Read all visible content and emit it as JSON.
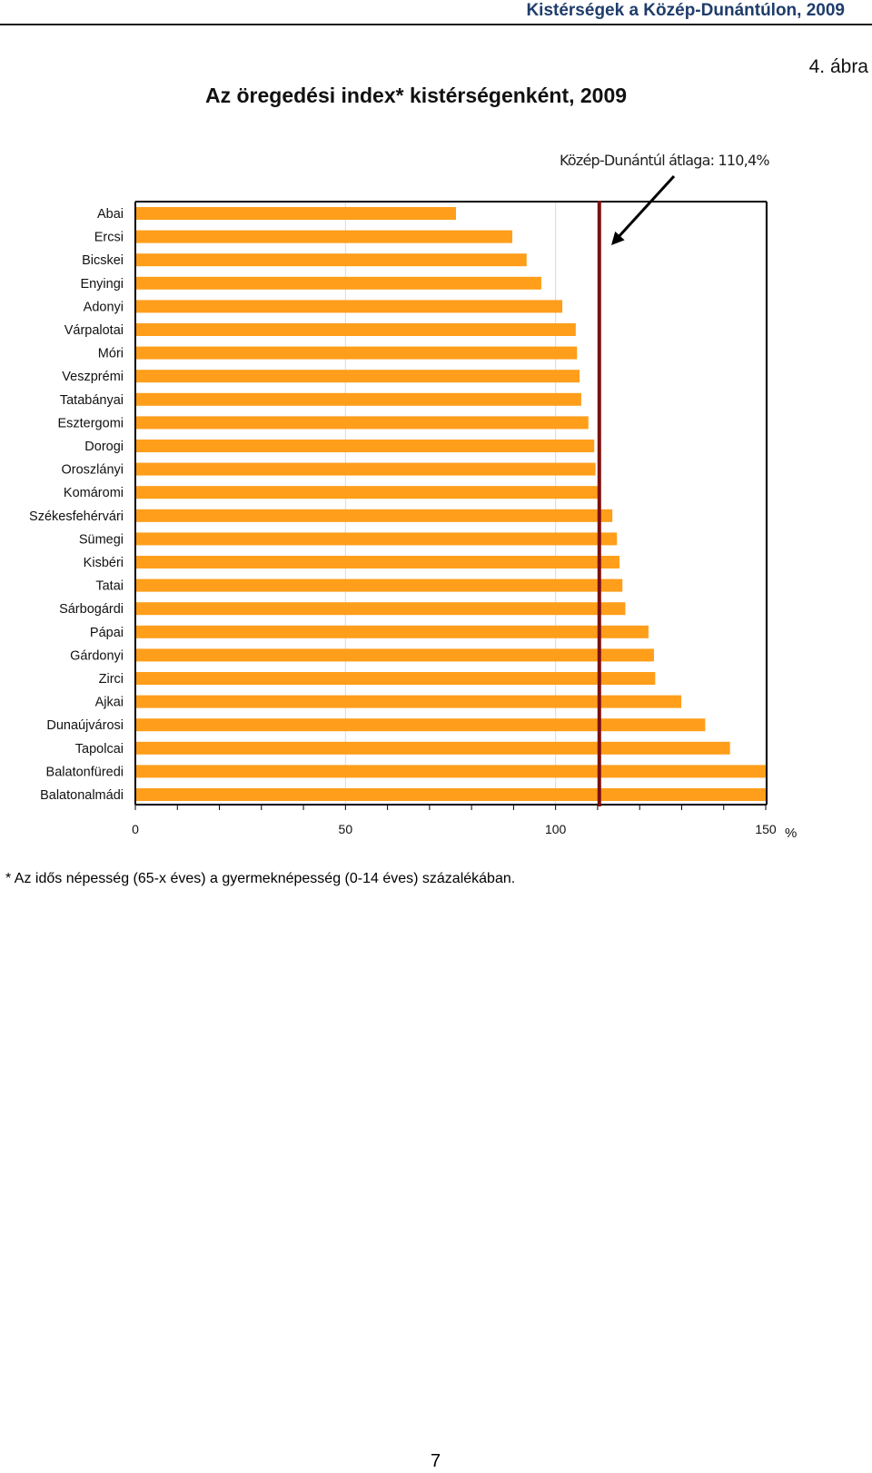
{
  "header": {
    "title": "Kistérségek a Közép-Dunántúlon, 2009"
  },
  "figure_number": "4. ábra",
  "footnote": "* Az idős népesség (65-x éves) a gyermeknépesség (0-14 éves) százalékában.",
  "page_number": "7",
  "colors": {
    "bar": "#FF9E1A",
    "average_line": "#7B1010",
    "axis": "#000000",
    "grid": "#D9D9D9",
    "header_text": "#1F3D6B"
  },
  "chart_data": {
    "type": "bar",
    "orientation": "horizontal",
    "title": "Az öregedési index* kistérségenként, 2009",
    "categories": [
      "Abai",
      "Ercsi",
      "Bicskei",
      "Enyingi",
      "Adonyi",
      "Várpalotai",
      "Móri",
      "Veszprémi",
      "Tatabányai",
      "Esztergomi",
      "Dorogi",
      "Oroszlányi",
      "Komáromi",
      "Székesfehérvári",
      "Sümegi",
      "Kisbéri",
      "Tatai",
      "Sárbogárdi",
      "Pápai",
      "Gárdonyi",
      "Zirci",
      "Ajkai",
      "Dunaújvárosi",
      "Tapolcai",
      "Balatonfüredi",
      "Balatonalmádi"
    ],
    "values": [
      76.3,
      89.7,
      93.1,
      96.6,
      101.6,
      104.8,
      105.1,
      105.7,
      106.1,
      107.8,
      109.2,
      109.5,
      110.4,
      113.5,
      114.6,
      115.2,
      115.9,
      116.6,
      122.1,
      123.4,
      123.7,
      129.9,
      135.6,
      141.5,
      151.2,
      153.1
    ],
    "xlim": [
      0,
      150
    ],
    "xticks": [
      "0",
      "50",
      "100",
      "150"
    ],
    "xlabel": "%",
    "grid": true,
    "average": {
      "value": 110.4,
      "label": "Közép-Dunántúl átlaga: 110,4%"
    }
  }
}
